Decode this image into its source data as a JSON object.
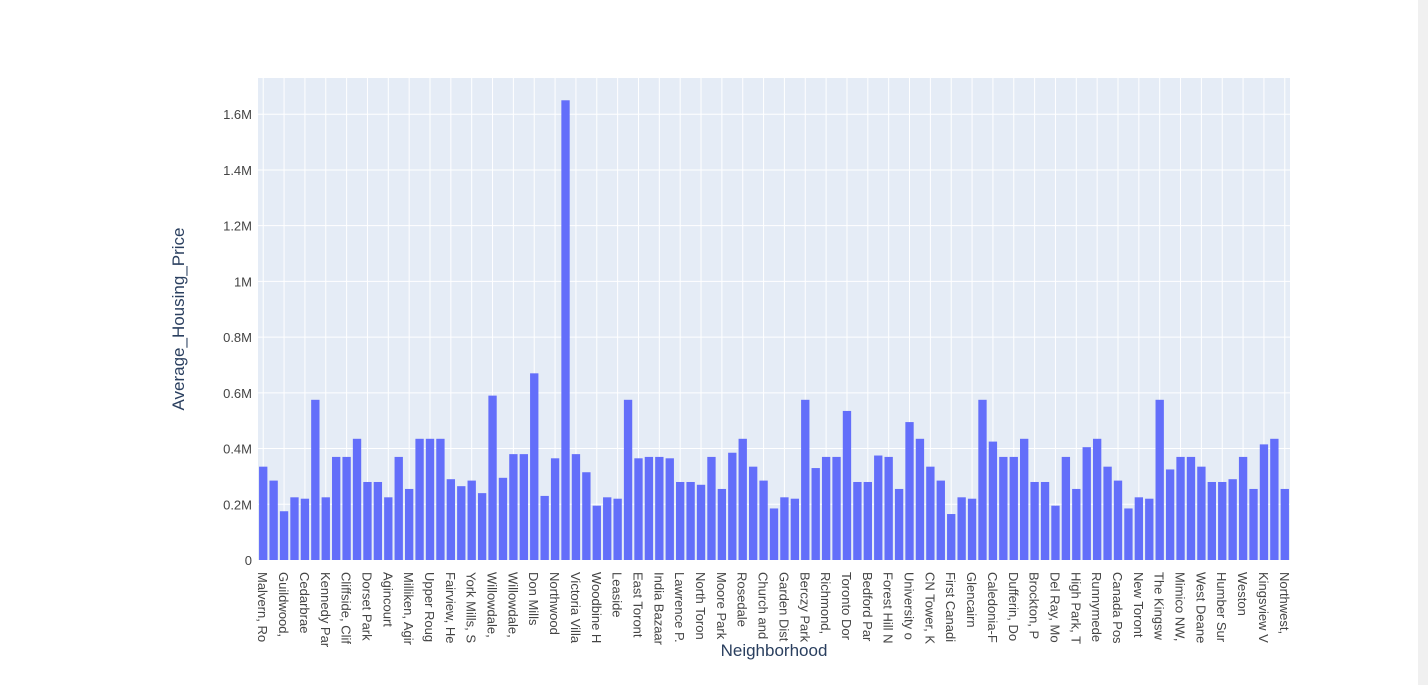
{
  "chart_data": {
    "type": "bar",
    "xlabel": "Neighborhood",
    "ylabel": "Average_Housing_Price",
    "ylim": [
      0,
      1730000
    ],
    "yticks": [
      0,
      200000,
      400000,
      600000,
      800000,
      1000000,
      1200000,
      1400000,
      1600000
    ],
    "ytick_labels": [
      "0",
      "0.2M",
      "0.4M",
      "0.6M",
      "0.8M",
      "1M",
      "1.2M",
      "1.4M",
      "1.6M"
    ],
    "grid": true,
    "bar_color": "#636efa",
    "plot_bg": "#e5ecf6",
    "categories": [
      "Malvern, Ro",
      "",
      "Guildwood,",
      "",
      "Cedarbrae",
      "",
      "Kennedy Par",
      "",
      "Cliffside, Clif",
      "",
      "Dorset Park",
      "",
      "Agincourt",
      "",
      "Milliken, Agir",
      "",
      "Upper Roug",
      "",
      "Fairview, He",
      "",
      "York Mills, S",
      "",
      "Willowdale,",
      "",
      "Willowdale,",
      "",
      "Don Mills",
      "",
      "Northwood",
      "",
      "Victoria Villa",
      "",
      "Woodbine H",
      "",
      "Leaside",
      "",
      "East Toront",
      "",
      "India Bazaar",
      "",
      "Lawrence P.",
      "",
      "North Toron",
      "",
      "Moore Park",
      "",
      "Rosedale",
      "",
      "Church and",
      "",
      "Garden Dist",
      "",
      "Berczy Park",
      "",
      "Richmond,",
      "",
      "Toronto Dor",
      "",
      "Bedford Par",
      "",
      "Forest Hill N",
      "",
      "University o",
      "",
      "CN Tower, K",
      "",
      "First Canadi",
      "",
      "Glencairn",
      "",
      "Caledonia-F",
      "",
      "Dufferin, Do",
      "",
      "Brockton, P",
      "",
      "Del Ray, Mo",
      "",
      "High Park, T",
      "",
      "Runnymede",
      "",
      "Canada Pos",
      "",
      "New Toront",
      "",
      "The Kingsw",
      "",
      "Mimico NW,",
      "",
      "West Deane",
      "",
      "Humber Sur",
      "",
      "Weston",
      "",
      "Kingsview V",
      "",
      "Northwest,"
    ],
    "values": [
      335000,
      285000,
      175000,
      225000,
      220000,
      575000,
      225000,
      370000,
      370000,
      435000,
      280000,
      280000,
      225000,
      370000,
      255000,
      435000,
      435000,
      435000,
      290000,
      265000,
      285000,
      240000,
      590000,
      295000,
      380000,
      380000,
      670000,
      230000,
      365000,
      1650000,
      380000,
      315000,
      195000,
      225000,
      220000,
      575000,
      365000,
      370000,
      370000,
      365000,
      280000,
      280000,
      270000,
      370000,
      255000,
      385000,
      435000,
      335000,
      285000,
      185000,
      225000,
      220000,
      575000,
      330000,
      370000,
      370000,
      535000,
      280000,
      280000,
      375000,
      370000,
      255000,
      495000,
      435000,
      335000,
      285000,
      165000,
      225000,
      220000,
      575000,
      425000,
      370000,
      370000,
      435000,
      280000,
      280000,
      195000,
      370000,
      255000,
      405000,
      435000,
      335000,
      285000,
      185000,
      225000,
      220000,
      575000,
      325000,
      370000,
      370000,
      335000,
      280000,
      280000,
      290000,
      370000,
      255000,
      415000,
      435000,
      255000
    ]
  }
}
